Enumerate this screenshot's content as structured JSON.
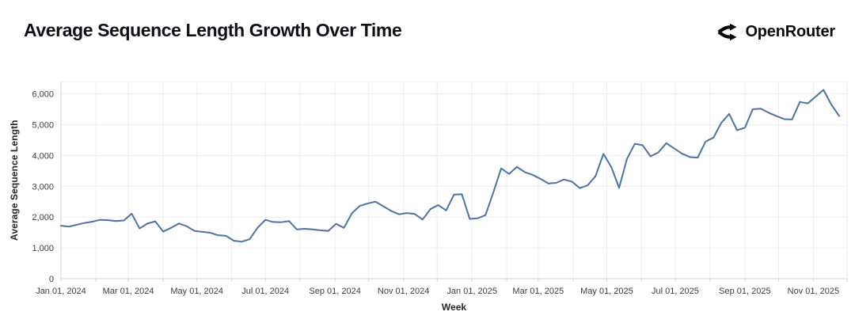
{
  "header": {
    "title": "Average Sequence Length Growth Over Time",
    "brand": {
      "name": "OpenRouter"
    }
  },
  "chart_data": {
    "type": "line",
    "title": "Average Sequence Length Growth Over Time",
    "xlabel": "Week",
    "ylabel": "Average Sequence Length",
    "grid": true,
    "legend": "none",
    "ylim": [
      0,
      6400
    ],
    "x_domain_weeks": [
      0,
      100
    ],
    "y_tick_values": [
      0,
      1000,
      2000,
      3000,
      4000,
      5000,
      6000
    ],
    "y_tick_labels": [
      "0",
      "1,000",
      "2,000",
      "3,000",
      "4,000",
      "5,000",
      "6,000"
    ],
    "x_tick_labels": [
      "Jan 01, 2024",
      "Mar 01, 2024",
      "May 01, 2024",
      "Jul 01, 2024",
      "Sep 01, 2024",
      "Nov 01, 2024",
      "Jan 01, 2025",
      "Mar 01, 2025",
      "May 01, 2025",
      "Jul 01, 2025",
      "Sep 01, 2025",
      "Nov 01, 2025"
    ],
    "x_tick_positions_weeks": [
      0,
      8.57,
      17.29,
      26.0,
      34.86,
      43.57,
      52.29,
      60.71,
      69.43,
      78.14,
      87.0,
      95.71
    ],
    "x_minor_gridlines_weeks": [
      4.43,
      13.0,
      21.71,
      30.43,
      39.14,
      47.86,
      56.71,
      65.14,
      73.86,
      82.57,
      91.29,
      100.0
    ],
    "colors": {
      "line": "#4c73a3",
      "grid": "#ededf0",
      "axis": "#d6d6dc",
      "tick_text": "#3c3c46"
    },
    "series": [
      {
        "name": "Average Sequence Length",
        "x_start_label": "Jan 01, 2024",
        "x_step": "1 week",
        "color": "#4c73a3",
        "values": [
          1720,
          1690,
          1750,
          1810,
          1850,
          1910,
          1900,
          1870,
          1890,
          2110,
          1630,
          1790,
          1860,
          1530,
          1650,
          1790,
          1700,
          1550,
          1520,
          1490,
          1410,
          1390,
          1230,
          1200,
          1280,
          1650,
          1910,
          1840,
          1830,
          1870,
          1600,
          1620,
          1600,
          1570,
          1550,
          1780,
          1650,
          2120,
          2360,
          2440,
          2500,
          2350,
          2200,
          2090,
          2130,
          2100,
          1920,
          2260,
          2390,
          2215,
          2730,
          2740,
          1940,
          1960,
          2060,
          2800,
          3580,
          3400,
          3630,
          3460,
          3370,
          3240,
          3090,
          3110,
          3220,
          3150,
          2940,
          3030,
          3330,
          4050,
          3630,
          2950,
          3890,
          4380,
          4330,
          3970,
          4100,
          4400,
          4230,
          4060,
          3950,
          3930,
          4450,
          4580,
          5060,
          5350,
          4820,
          4900,
          5500,
          5520,
          5390,
          5280,
          5180,
          5170,
          5740,
          5690,
          5910,
          6130,
          5650,
          5280
        ]
      }
    ]
  }
}
